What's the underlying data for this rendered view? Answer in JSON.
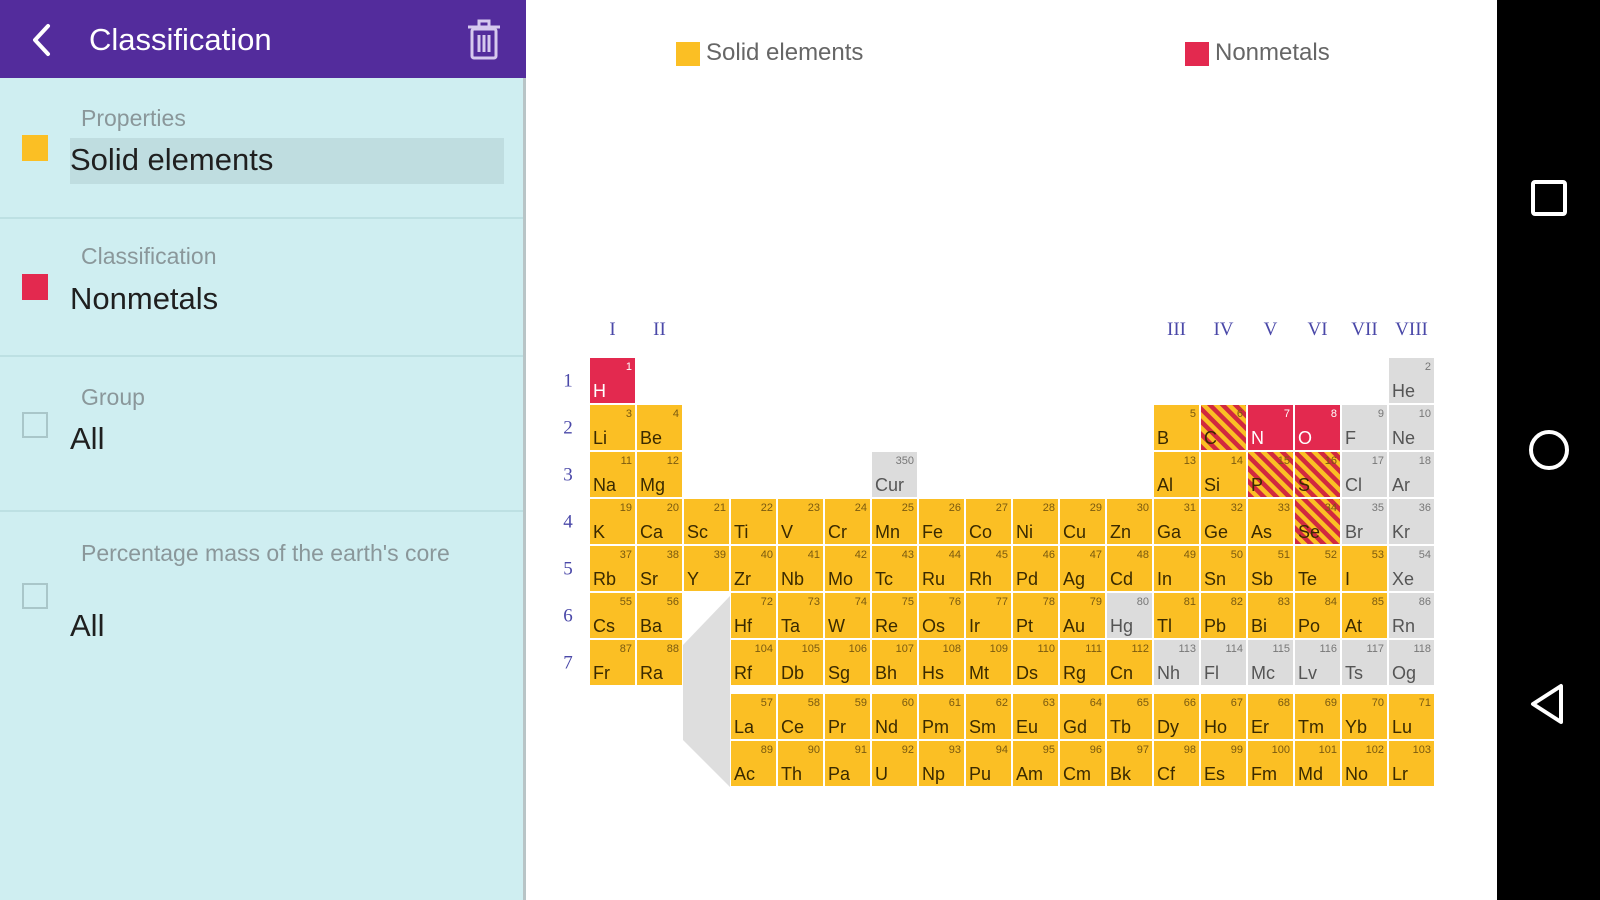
{
  "app": {
    "title": "Classification"
  },
  "filters": [
    {
      "label": "Properties",
      "value": "Solid elements",
      "color": "#fbbf24",
      "active": true
    },
    {
      "label": "Classification",
      "value": "Nonmetals",
      "color": "#e3294f",
      "active": true
    },
    {
      "label": "Group",
      "value": "All",
      "active": false
    },
    {
      "label": "Percentage mass of the earth's core",
      "value": "All",
      "active": false
    }
  ],
  "legend": [
    {
      "label": "Solid elements",
      "color": "#fbbf24"
    },
    {
      "label": "Nonmetals",
      "color": "#e3294f"
    }
  ],
  "table": {
    "group_labels": [
      "I",
      "II",
      "III",
      "IV",
      "V",
      "VI",
      "VII",
      "VIII"
    ],
    "period_labels": [
      "1",
      "2",
      "3",
      "4",
      "5",
      "6",
      "7"
    ],
    "colors": {
      "solid": "#fbbf24",
      "nonmetal": "#e3294f",
      "other": "#dcdcdc",
      "stripe": "#d1293f"
    },
    "elements": [
      {
        "n": 1,
        "s": "H",
        "p": 1,
        "g": 1,
        "c": "n"
      },
      {
        "n": 2,
        "s": "He",
        "p": 1,
        "g": 18,
        "c": "o"
      },
      {
        "n": 3,
        "s": "Li",
        "p": 2,
        "g": 1,
        "c": "s"
      },
      {
        "n": 4,
        "s": "Be",
        "p": 2,
        "g": 2,
        "c": "s"
      },
      {
        "n": 5,
        "s": "B",
        "p": 2,
        "g": 13,
        "c": "s"
      },
      {
        "n": 6,
        "s": "C",
        "p": 2,
        "g": 14,
        "c": "b"
      },
      {
        "n": 7,
        "s": "N",
        "p": 2,
        "g": 15,
        "c": "n"
      },
      {
        "n": 8,
        "s": "O",
        "p": 2,
        "g": 16,
        "c": "n"
      },
      {
        "n": 9,
        "s": "F",
        "p": 2,
        "g": 17,
        "c": "o"
      },
      {
        "n": 10,
        "s": "Ne",
        "p": 2,
        "g": 18,
        "c": "o"
      },
      {
        "n": 11,
        "s": "Na",
        "p": 3,
        "g": 1,
        "c": "s"
      },
      {
        "n": 12,
        "s": "Mg",
        "p": 3,
        "g": 2,
        "c": "s"
      },
      {
        "n": 350,
        "s": "Cur",
        "p": 3,
        "g": 7,
        "c": "o"
      },
      {
        "n": 13,
        "s": "Al",
        "p": 3,
        "g": 13,
        "c": "s"
      },
      {
        "n": 14,
        "s": "Si",
        "p": 3,
        "g": 14,
        "c": "s"
      },
      {
        "n": 15,
        "s": "P",
        "p": 3,
        "g": 15,
        "c": "b"
      },
      {
        "n": 16,
        "s": "S",
        "p": 3,
        "g": 16,
        "c": "b"
      },
      {
        "n": 17,
        "s": "Cl",
        "p": 3,
        "g": 17,
        "c": "o"
      },
      {
        "n": 18,
        "s": "Ar",
        "p": 3,
        "g": 18,
        "c": "o"
      },
      {
        "n": 19,
        "s": "K",
        "p": 4,
        "g": 1,
        "c": "s"
      },
      {
        "n": 20,
        "s": "Ca",
        "p": 4,
        "g": 2,
        "c": "s"
      },
      {
        "n": 21,
        "s": "Sc",
        "p": 4,
        "g": 3,
        "c": "s"
      },
      {
        "n": 22,
        "s": "Ti",
        "p": 4,
        "g": 4,
        "c": "s"
      },
      {
        "n": 23,
        "s": "V",
        "p": 4,
        "g": 5,
        "c": "s"
      },
      {
        "n": 24,
        "s": "Cr",
        "p": 4,
        "g": 6,
        "c": "s"
      },
      {
        "n": 25,
        "s": "Mn",
        "p": 4,
        "g": 7,
        "c": "s"
      },
      {
        "n": 26,
        "s": "Fe",
        "p": 4,
        "g": 8,
        "c": "s"
      },
      {
        "n": 27,
        "s": "Co",
        "p": 4,
        "g": 9,
        "c": "s"
      },
      {
        "n": 28,
        "s": "Ni",
        "p": 4,
        "g": 10,
        "c": "s"
      },
      {
        "n": 29,
        "s": "Cu",
        "p": 4,
        "g": 11,
        "c": "s"
      },
      {
        "n": 30,
        "s": "Zn",
        "p": 4,
        "g": 12,
        "c": "s"
      },
      {
        "n": 31,
        "s": "Ga",
        "p": 4,
        "g": 13,
        "c": "s"
      },
      {
        "n": 32,
        "s": "Ge",
        "p": 4,
        "g": 14,
        "c": "s"
      },
      {
        "n": 33,
        "s": "As",
        "p": 4,
        "g": 15,
        "c": "s"
      },
      {
        "n": 34,
        "s": "Se",
        "p": 4,
        "g": 16,
        "c": "b"
      },
      {
        "n": 35,
        "s": "Br",
        "p": 4,
        "g": 17,
        "c": "o"
      },
      {
        "n": 36,
        "s": "Kr",
        "p": 4,
        "g": 18,
        "c": "o"
      },
      {
        "n": 37,
        "s": "Rb",
        "p": 5,
        "g": 1,
        "c": "s"
      },
      {
        "n": 38,
        "s": "Sr",
        "p": 5,
        "g": 2,
        "c": "s"
      },
      {
        "n": 39,
        "s": "Y",
        "p": 5,
        "g": 3,
        "c": "s"
      },
      {
        "n": 40,
        "s": "Zr",
        "p": 5,
        "g": 4,
        "c": "s"
      },
      {
        "n": 41,
        "s": "Nb",
        "p": 5,
        "g": 5,
        "c": "s"
      },
      {
        "n": 42,
        "s": "Mo",
        "p": 5,
        "g": 6,
        "c": "s"
      },
      {
        "n": 43,
        "s": "Tc",
        "p": 5,
        "g": 7,
        "c": "s"
      },
      {
        "n": 44,
        "s": "Ru",
        "p": 5,
        "g": 8,
        "c": "s"
      },
      {
        "n": 45,
        "s": "Rh",
        "p": 5,
        "g": 9,
        "c": "s"
      },
      {
        "n": 46,
        "s": "Pd",
        "p": 5,
        "g": 10,
        "c": "s"
      },
      {
        "n": 47,
        "s": "Ag",
        "p": 5,
        "g": 11,
        "c": "s"
      },
      {
        "n": 48,
        "s": "Cd",
        "p": 5,
        "g": 12,
        "c": "s"
      },
      {
        "n": 49,
        "s": "In",
        "p": 5,
        "g": 13,
        "c": "s"
      },
      {
        "n": 50,
        "s": "Sn",
        "p": 5,
        "g": 14,
        "c": "s"
      },
      {
        "n": 51,
        "s": "Sb",
        "p": 5,
        "g": 15,
        "c": "s"
      },
      {
        "n": 52,
        "s": "Te",
        "p": 5,
        "g": 16,
        "c": "s"
      },
      {
        "n": 53,
        "s": "I",
        "p": 5,
        "g": 17,
        "c": "s"
      },
      {
        "n": 54,
        "s": "Xe",
        "p": 5,
        "g": 18,
        "c": "o"
      },
      {
        "n": 55,
        "s": "Cs",
        "p": 6,
        "g": 1,
        "c": "s"
      },
      {
        "n": 56,
        "s": "Ba",
        "p": 6,
        "g": 2,
        "c": "s"
      },
      {
        "n": 72,
        "s": "Hf",
        "p": 6,
        "g": 4,
        "c": "s"
      },
      {
        "n": 73,
        "s": "Ta",
        "p": 6,
        "g": 5,
        "c": "s"
      },
      {
        "n": 74,
        "s": "W",
        "p": 6,
        "g": 6,
        "c": "s"
      },
      {
        "n": 75,
        "s": "Re",
        "p": 6,
        "g": 7,
        "c": "s"
      },
      {
        "n": 76,
        "s": "Os",
        "p": 6,
        "g": 8,
        "c": "s"
      },
      {
        "n": 77,
        "s": "Ir",
        "p": 6,
        "g": 9,
        "c": "s"
      },
      {
        "n": 78,
        "s": "Pt",
        "p": 6,
        "g": 10,
        "c": "s"
      },
      {
        "n": 79,
        "s": "Au",
        "p": 6,
        "g": 11,
        "c": "s"
      },
      {
        "n": 80,
        "s": "Hg",
        "p": 6,
        "g": 12,
        "c": "o"
      },
      {
        "n": 81,
        "s": "Tl",
        "p": 6,
        "g": 13,
        "c": "s"
      },
      {
        "n": 82,
        "s": "Pb",
        "p": 6,
        "g": 14,
        "c": "s"
      },
      {
        "n": 83,
        "s": "Bi",
        "p": 6,
        "g": 15,
        "c": "s"
      },
      {
        "n": 84,
        "s": "Po",
        "p": 6,
        "g": 16,
        "c": "s"
      },
      {
        "n": 85,
        "s": "At",
        "p": 6,
        "g": 17,
        "c": "s"
      },
      {
        "n": 86,
        "s": "Rn",
        "p": 6,
        "g": 18,
        "c": "o"
      },
      {
        "n": 87,
        "s": "Fr",
        "p": 7,
        "g": 1,
        "c": "s"
      },
      {
        "n": 88,
        "s": "Ra",
        "p": 7,
        "g": 2,
        "c": "s"
      },
      {
        "n": 104,
        "s": "Rf",
        "p": 7,
        "g": 4,
        "c": "s"
      },
      {
        "n": 105,
        "s": "Db",
        "p": 7,
        "g": 5,
        "c": "s"
      },
      {
        "n": 106,
        "s": "Sg",
        "p": 7,
        "g": 6,
        "c": "s"
      },
      {
        "n": 107,
        "s": "Bh",
        "p": 7,
        "g": 7,
        "c": "s"
      },
      {
        "n": 108,
        "s": "Hs",
        "p": 7,
        "g": 8,
        "c": "s"
      },
      {
        "n": 109,
        "s": "Mt",
        "p": 7,
        "g": 9,
        "c": "s"
      },
      {
        "n": 110,
        "s": "Ds",
        "p": 7,
        "g": 10,
        "c": "s"
      },
      {
        "n": 111,
        "s": "Rg",
        "p": 7,
        "g": 11,
        "c": "s"
      },
      {
        "n": 112,
        "s": "Cn",
        "p": 7,
        "g": 12,
        "c": "s"
      },
      {
        "n": 113,
        "s": "Nh",
        "p": 7,
        "g": 13,
        "c": "o"
      },
      {
        "n": 114,
        "s": "Fl",
        "p": 7,
        "g": 14,
        "c": "o"
      },
      {
        "n": 115,
        "s": "Mc",
        "p": 7,
        "g": 15,
        "c": "o"
      },
      {
        "n": 116,
        "s": "Lv",
        "p": 7,
        "g": 16,
        "c": "o"
      },
      {
        "n": 117,
        "s": "Ts",
        "p": 7,
        "g": 17,
        "c": "o"
      },
      {
        "n": 118,
        "s": "Og",
        "p": 7,
        "g": 18,
        "c": "o"
      },
      {
        "n": 57,
        "s": "La",
        "p": 8,
        "g": 4,
        "c": "s"
      },
      {
        "n": 58,
        "s": "Ce",
        "p": 8,
        "g": 5,
        "c": "s"
      },
      {
        "n": 59,
        "s": "Pr",
        "p": 8,
        "g": 6,
        "c": "s"
      },
      {
        "n": 60,
        "s": "Nd",
        "p": 8,
        "g": 7,
        "c": "s"
      },
      {
        "n": 61,
        "s": "Pm",
        "p": 8,
        "g": 8,
        "c": "s"
      },
      {
        "n": 62,
        "s": "Sm",
        "p": 8,
        "g": 9,
        "c": "s"
      },
      {
        "n": 63,
        "s": "Eu",
        "p": 8,
        "g": 10,
        "c": "s"
      },
      {
        "n": 64,
        "s": "Gd",
        "p": 8,
        "g": 11,
        "c": "s"
      },
      {
        "n": 65,
        "s": "Tb",
        "p": 8,
        "g": 12,
        "c": "s"
      },
      {
        "n": 66,
        "s": "Dy",
        "p": 8,
        "g": 13,
        "c": "s"
      },
      {
        "n": 67,
        "s": "Ho",
        "p": 8,
        "g": 14,
        "c": "s"
      },
      {
        "n": 68,
        "s": "Er",
        "p": 8,
        "g": 15,
        "c": "s"
      },
      {
        "n": 69,
        "s": "Tm",
        "p": 8,
        "g": 16,
        "c": "s"
      },
      {
        "n": 70,
        "s": "Yb",
        "p": 8,
        "g": 17,
        "c": "s"
      },
      {
        "n": 71,
        "s": "Lu",
        "p": 8,
        "g": 18,
        "c": "s"
      },
      {
        "n": 89,
        "s": "Ac",
        "p": 9,
        "g": 4,
        "c": "s"
      },
      {
        "n": 90,
        "s": "Th",
        "p": 9,
        "g": 5,
        "c": "s"
      },
      {
        "n": 91,
        "s": "Pa",
        "p": 9,
        "g": 6,
        "c": "s"
      },
      {
        "n": 92,
        "s": "U",
        "p": 9,
        "g": 7,
        "c": "s"
      },
      {
        "n": 93,
        "s": "Np",
        "p": 9,
        "g": 8,
        "c": "s"
      },
      {
        "n": 94,
        "s": "Pu",
        "p": 9,
        "g": 9,
        "c": "s"
      },
      {
        "n": 95,
        "s": "Am",
        "p": 9,
        "g": 10,
        "c": "s"
      },
      {
        "n": 96,
        "s": "Cm",
        "p": 9,
        "g": 11,
        "c": "s"
      },
      {
        "n": 97,
        "s": "Bk",
        "p": 9,
        "g": 12,
        "c": "s"
      },
      {
        "n": 98,
        "s": "Cf",
        "p": 9,
        "g": 13,
        "c": "s"
      },
      {
        "n": 99,
        "s": "Es",
        "p": 9,
        "g": 14,
        "c": "s"
      },
      {
        "n": 100,
        "s": "Fm",
        "p": 9,
        "g": 15,
        "c": "s"
      },
      {
        "n": 101,
        "s": "Md",
        "p": 9,
        "g": 16,
        "c": "s"
      },
      {
        "n": 102,
        "s": "No",
        "p": 9,
        "g": 17,
        "c": "s"
      },
      {
        "n": 103,
        "s": "Lr",
        "p": 9,
        "g": 18,
        "c": "s"
      }
    ]
  },
  "icons": {
    "back": "arrow-back-icon",
    "trash": "trash-icon",
    "nav_square": "recent-apps-icon",
    "nav_circle": "home-icon",
    "nav_triangle": "back-triangle-icon"
  }
}
